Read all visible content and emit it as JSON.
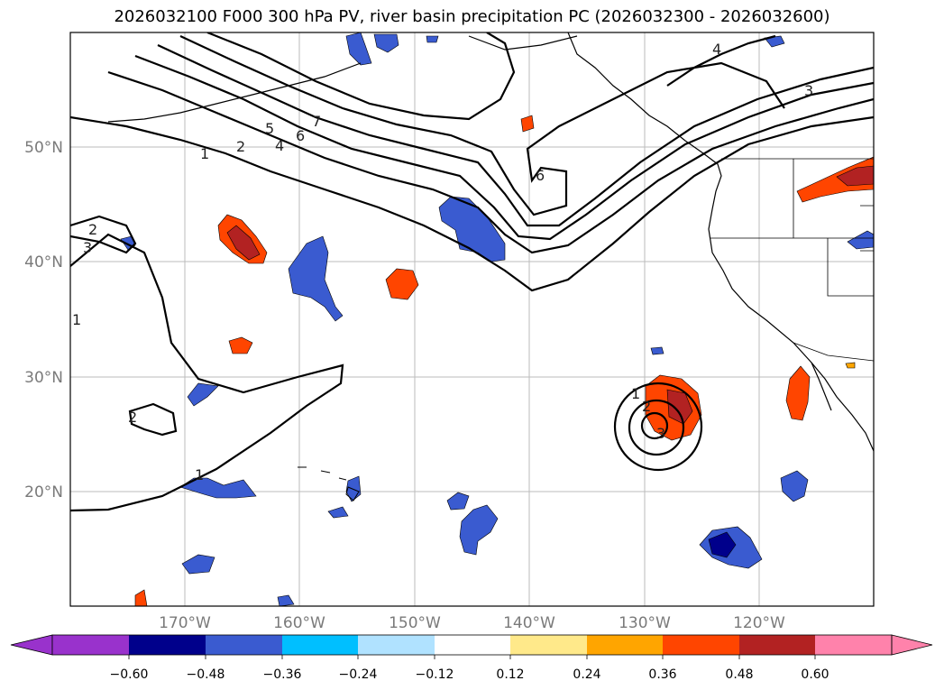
{
  "title": "2026032100 F000 300 hPa PV, river basin precipitation PC (2026032300 - 2026032600)",
  "map": {
    "lat_labels": [
      "50°N",
      "40°N",
      "30°N",
      "20°N"
    ],
    "lon_labels": [
      "170°W",
      "160°W",
      "150°W",
      "140°W",
      "130°W",
      "120°W"
    ]
  },
  "contour_labels": [
    "1",
    "2",
    "4",
    "5",
    "6",
    "7",
    "6",
    "4",
    "3",
    "2",
    "3",
    "1",
    "2",
    "1",
    "1",
    "2",
    "3"
  ],
  "colorbar": {
    "ticks": [
      "−0.60",
      "−0.48",
      "−0.36",
      "−0.24",
      "−0.12",
      "0.12",
      "0.24",
      "0.36",
      "0.48",
      "0.60"
    ],
    "colors": [
      "#9932cc",
      "#00008b",
      "#3a5bd0",
      "#00bfff",
      "#b0e2ff",
      "#ffffff",
      "#ffe98a",
      "#ffa500",
      "#ff4500",
      "#b22222",
      "#ff82ab"
    ]
  }
}
